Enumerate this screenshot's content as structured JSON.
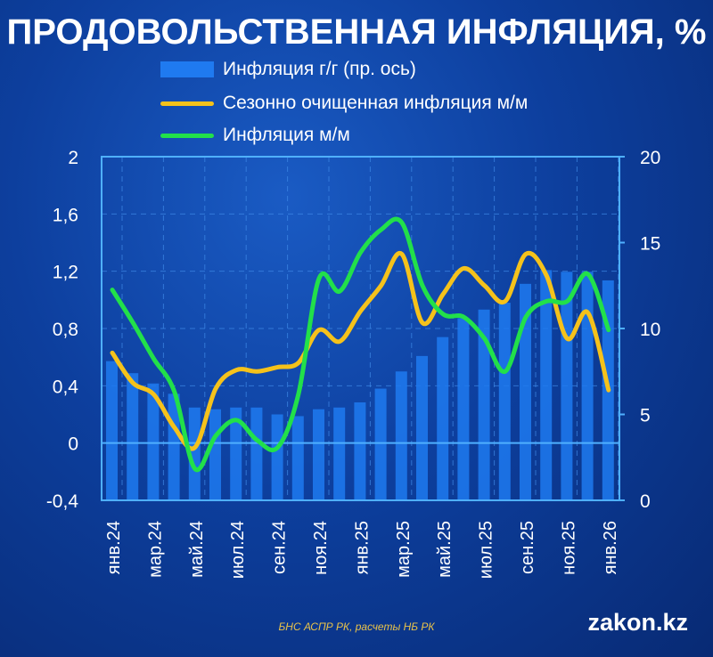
{
  "chart_data": {
    "type": "bar+line",
    "title": "ПРОДОВОЛЬСТВЕННАЯ ИНФЛЯЦИЯ, %",
    "categories": [
      "янв.24",
      "фев.24",
      "мар.24",
      "апр.24",
      "май.24",
      "июн.24",
      "июл.24",
      "авг.24",
      "сен.24",
      "окт.24",
      "ноя.24",
      "дек.24",
      "янв.25",
      "фев.25",
      "мар.25",
      "апр.25",
      "май.25",
      "июн.25",
      "июл.25",
      "авг.25",
      "сен.25",
      "окт.25",
      "ноя.25",
      "дек.25",
      "янв.26"
    ],
    "tick_labels": [
      "янв.24",
      "мар.24",
      "май.24",
      "июл.24",
      "сен.24",
      "ноя.24",
      "янв.25",
      "мар.25",
      "май.25",
      "июл.25",
      "сен.25",
      "ноя.25",
      "янв.26"
    ],
    "left_axis": {
      "ylim": [
        -0.4,
        2
      ],
      "ticks": [
        "-0,4",
        "0",
        "0,4",
        "0,8",
        "1,2",
        "1,6",
        "2"
      ]
    },
    "right_axis": {
      "ylim": [
        0,
        20
      ],
      "ticks": [
        "0",
        "5",
        "10",
        "15",
        "20"
      ]
    },
    "series": [
      {
        "name": "Инфляция г/г (пр. ось)",
        "type": "bar",
        "axis": "right",
        "color": "#1f7af0",
        "values": [
          8.1,
          7.4,
          6.8,
          6.2,
          5.4,
          5.3,
          5.4,
          5.4,
          5.0,
          4.9,
          5.3,
          5.4,
          5.7,
          6.5,
          7.5,
          8.4,
          9.5,
          10.6,
          11.1,
          11.5,
          12.6,
          13.4,
          13.3,
          13.3,
          12.8
        ]
      },
      {
        "name": "Сезонно очищенная инфляция м/м",
        "type": "line",
        "axis": "left",
        "color": "#f5c21b",
        "values": [
          0.63,
          0.42,
          0.34,
          0.11,
          -0.03,
          0.38,
          0.51,
          0.5,
          0.53,
          0.56,
          0.79,
          0.71,
          0.92,
          1.1,
          1.32,
          0.84,
          1.04,
          1.22,
          1.1,
          0.99,
          1.32,
          1.17,
          0.73,
          0.91,
          0.37
        ]
      },
      {
        "name": "Инфляция м/м",
        "type": "line",
        "axis": "left",
        "color": "#22e04a",
        "values": [
          1.07,
          0.84,
          0.59,
          0.36,
          -0.18,
          0.05,
          0.16,
          0.02,
          -0.03,
          0.34,
          1.15,
          1.06,
          1.33,
          1.49,
          1.54,
          1.1,
          0.9,
          0.88,
          0.73,
          0.5,
          0.88,
          0.99,
          0.99,
          1.18,
          0.79
        ]
      }
    ],
    "grid": true,
    "legend_position": "top"
  },
  "source": "БНС АСПР РК, расчеты НБ РК",
  "logo": "zakon.kz"
}
